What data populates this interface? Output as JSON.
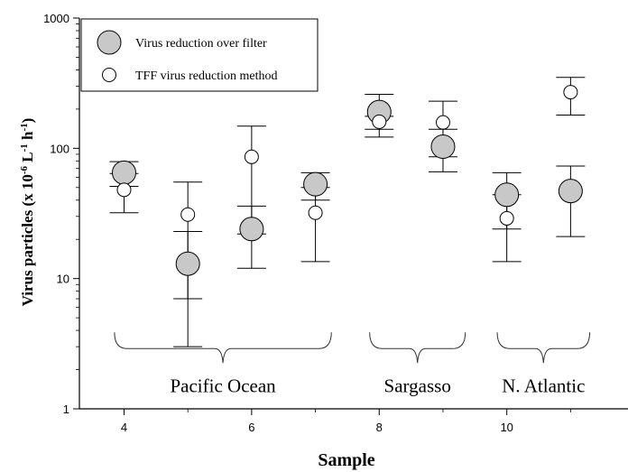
{
  "chart_data": {
    "type": "scatter",
    "xlabel": "Sample",
    "ylabel_parts": [
      "Virus particles (x 10",
      "-6",
      " L",
      "-1",
      " h",
      "-1",
      ")"
    ],
    "y_scale": "log",
    "ylim": [
      1,
      1000
    ],
    "xlim": [
      3.3,
      11.9
    ],
    "x_ticks": [
      4,
      6,
      8,
      10
    ],
    "y_ticks": [
      1,
      10,
      100,
      1000
    ],
    "x_tick_labels": [
      "4",
      "6",
      "8",
      "10"
    ],
    "y_tick_labels": [
      "1",
      "10",
      "100",
      "1000"
    ],
    "legend_position": "top-left",
    "series": [
      {
        "name": "Virus reduction over filter",
        "marker": "large-filled-circle",
        "color": "#c8c8c8",
        "points": [
          {
            "x": 4,
            "y": 65,
            "low": 51,
            "high": 79
          },
          {
            "x": 5,
            "y": 13,
            "low": 7,
            "high": 23
          },
          {
            "x": 6,
            "y": 24,
            "low": 12,
            "high": 36
          },
          {
            "x": 7,
            "y": 53,
            "low": 40,
            "high": 65
          },
          {
            "x": 8,
            "y": 190,
            "low": 140,
            "high": 260
          },
          {
            "x": 9,
            "y": 103,
            "low": 66,
            "high": 140
          },
          {
            "x": 10,
            "y": 44,
            "low": 24,
            "high": 65
          },
          {
            "x": 11,
            "y": 47,
            "low": 21,
            "high": 73
          }
        ]
      },
      {
        "name": "TFF virus reduction method",
        "marker": "small-open-circle",
        "color": "#ffffff",
        "points": [
          {
            "x": 4,
            "y": 48,
            "low": 32,
            "high": 64
          },
          {
            "x": 5,
            "y": 31,
            "low": 3,
            "high": 55
          },
          {
            "x": 6,
            "y": 86,
            "low": 22,
            "high": 148
          },
          {
            "x": 7,
            "y": 32,
            "low": 13.5,
            "high": 50
          },
          {
            "x": 8,
            "y": 160,
            "low": 122,
            "high": 176
          },
          {
            "x": 9,
            "y": 158,
            "low": 86,
            "high": 230
          },
          {
            "x": 10,
            "y": 29,
            "low": 13.5,
            "high": 44
          },
          {
            "x": 11,
            "y": 270,
            "low": 180,
            "high": 350
          }
        ]
      }
    ],
    "region_groups": [
      {
        "label": "Pacific Ocean",
        "x_start": 3.85,
        "x_end": 7.25
      },
      {
        "label": "Sargasso",
        "x_start": 7.85,
        "x_end": 9.35
      },
      {
        "label": "N. Atlantic",
        "x_start": 9.85,
        "x_end": 11.3
      }
    ],
    "bracket_y": 2.9
  }
}
